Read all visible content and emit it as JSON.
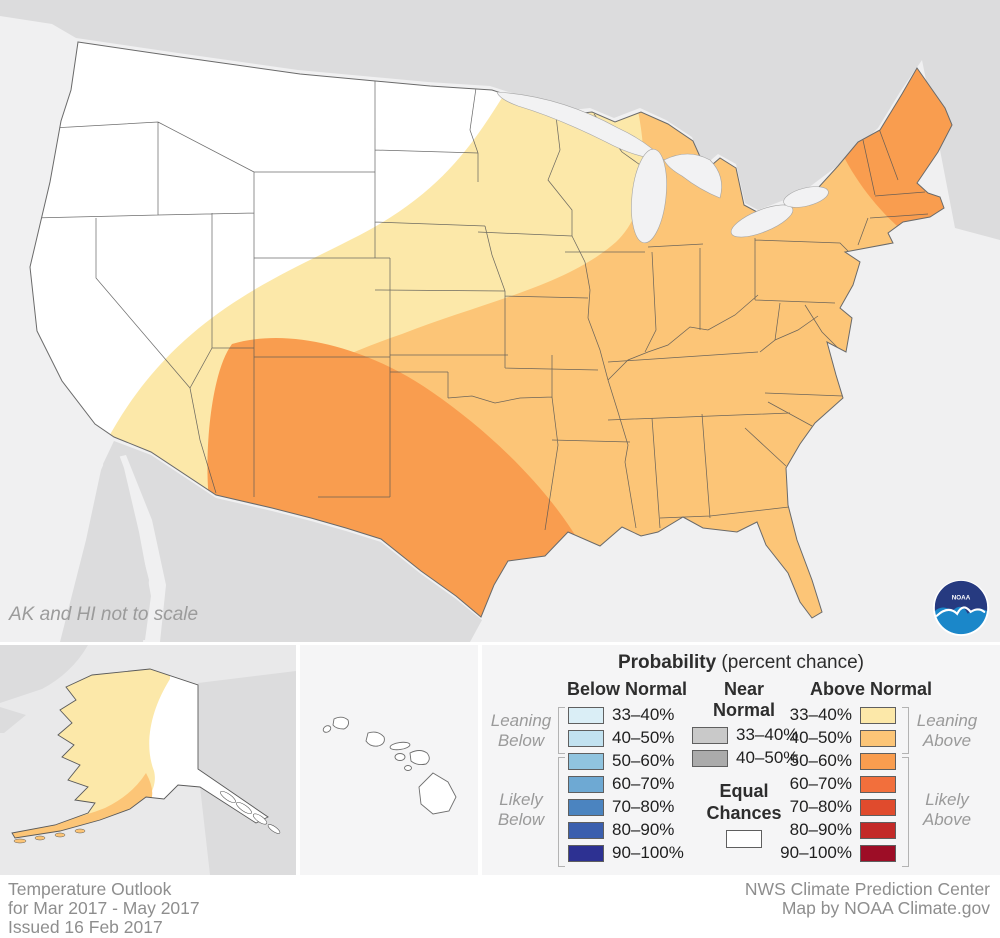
{
  "map": {
    "note": "AK and HI not to scale",
    "logo_text": "NOAA"
  },
  "colors": {
    "ocean": "#f0f0f1",
    "foreign_land": "#dcdcdd",
    "equal_chances": "#ffffff",
    "above_33_40": "#fce8a9",
    "above_40_50": "#fcc577",
    "above_50_60": "#f99d4f",
    "above_60_70": "#f26f3c",
    "above_70_80": "#e04b2d",
    "above_80_90": "#c32a28",
    "above_90_100": "#9d0d26",
    "below_33_40": "#daeef6",
    "below_40_50": "#c2e2f0",
    "below_50_60": "#90c4df",
    "below_60_70": "#6ea9d3",
    "below_70_80": "#4b84c0",
    "below_80_90": "#3b5fae",
    "below_90_100": "#2d3192",
    "near_33_40": "#c9c9c9",
    "near_40_50": "#ababab"
  },
  "legend": {
    "title": "Probability",
    "title_suffix": " (percent chance)",
    "below": {
      "header": "Below Normal",
      "rows": [
        {
          "range": "33–40%",
          "color": "#daeef6"
        },
        {
          "range": "40–50%",
          "color": "#c2e2f0"
        },
        {
          "range": "50–60%",
          "color": "#90c4df"
        },
        {
          "range": "60–70%",
          "color": "#6ea9d3"
        },
        {
          "range": "70–80%",
          "color": "#4b84c0"
        },
        {
          "range": "80–90%",
          "color": "#3b5fae"
        },
        {
          "range": "90–100%",
          "color": "#2d3192"
        }
      ]
    },
    "near": {
      "header": "Near Normal",
      "rows": [
        {
          "range": "33–40%",
          "color": "#c9c9c9"
        },
        {
          "range": "40–50%",
          "color": "#ababab"
        }
      ]
    },
    "above": {
      "header": "Above Normal",
      "rows": [
        {
          "range": "33–40%",
          "color": "#fce8a9"
        },
        {
          "range": "40–50%",
          "color": "#fcc577"
        },
        {
          "range": "50–60%",
          "color": "#f99d4f"
        },
        {
          "range": "60–70%",
          "color": "#f26f3c"
        },
        {
          "range": "70–80%",
          "color": "#e04b2d"
        },
        {
          "range": "80–90%",
          "color": "#c32a28"
        },
        {
          "range": "90–100%",
          "color": "#9d0d26"
        }
      ]
    },
    "equal_chances": {
      "label": "Equal Chances",
      "color": "#ffffff"
    },
    "brackets": {
      "leaning_below": "Leaning Below",
      "likely_below": "Likely Below",
      "leaning_above": "Leaning Above",
      "likely_above": "Likely Above"
    }
  },
  "footer": {
    "left": [
      "Temperature Outlook",
      "for Mar 2017 - May 2017",
      "Issued 16 Feb 2017"
    ],
    "right": [
      "NWS Climate Prediction Center",
      "Map by NOAA Climate.gov"
    ]
  }
}
